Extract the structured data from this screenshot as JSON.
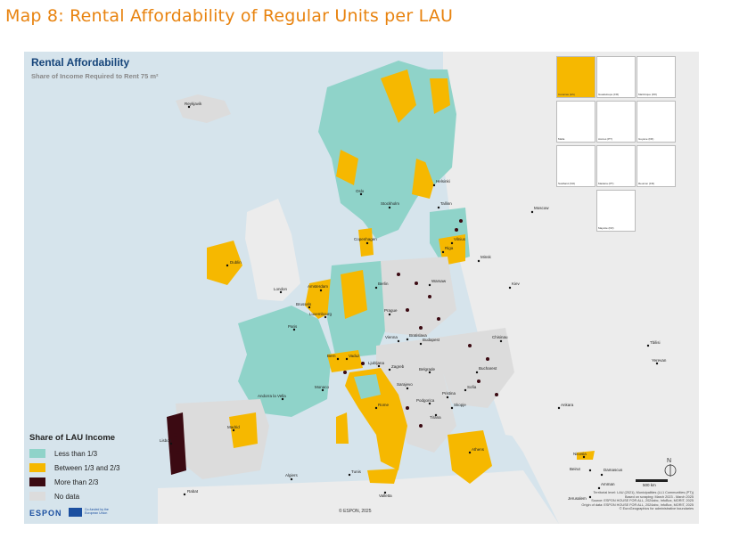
{
  "page_title": "Map 8: Rental Affordability of Regular Units per LAU",
  "map": {
    "title": "Rental Affordability",
    "subtitle": "Share of Income Required to Rent 75 m²"
  },
  "legend": {
    "title": "Share of LAU Income",
    "items": [
      {
        "label": "Less than 1/3",
        "color": "#8fd3c9"
      },
      {
        "label": "Between 1/3 and 2/3",
        "color": "#f6b800"
      },
      {
        "label": "More than 2/3",
        "color": "#3b0a12"
      },
      {
        "label": "No data",
        "color": "#dcdcdc"
      }
    ]
  },
  "colors": {
    "sea": "#d6e4ec",
    "land_no_data": "#dcdcdc",
    "non_eu_land": "#ececec"
  },
  "cities": [
    "Reykjavik",
    "Oslo",
    "Stockholm",
    "Helsinki",
    "Tallinn",
    "Riga",
    "Vilnius",
    "Minsk",
    "Moscow",
    "Copenhagen",
    "Dublin",
    "London",
    "Amsterdam",
    "Berlin",
    "Warsaw",
    "Kiev",
    "Brussels",
    "Luxembourg",
    "Paris",
    "Prague",
    "Bratislava",
    "Vienna",
    "Budapest",
    "Chisinau",
    "Bern",
    "Vaduz",
    "Ljubljana",
    "Zagreb",
    "Belgrade",
    "Bucharest",
    "Sarajevo",
    "Podgorica",
    "Pristina",
    "Skopje",
    "Sofia",
    "Tirana",
    "Rome",
    "Monaco",
    "Andorra la Vella",
    "Madrid",
    "Lisbon",
    "Valletta",
    "Algiers",
    "Tunis",
    "Rabat",
    "Athens",
    "Ankara",
    "Tbilisi",
    "Yerevan",
    "Nicosia",
    "Beirut",
    "Damascus",
    "Amman",
    "Jerusalem"
  ],
  "insets": [
    "Canarias (ES)",
    "Guadeloupe (FR)",
    "Martinique (FR)",
    "Malta",
    "Acores (PT)",
    "Guyane (FR)",
    "Svalbard (NO)",
    "Madeira (PT)",
    "Reunion (FR)",
    "Mayotte (FR)"
  ],
  "scale_label": "500 km",
  "north_label": "N",
  "logo": {
    "name": "ESPON",
    "eu_text": "Co-funded by the European Union"
  },
  "copyright": "© ESPON, 2025",
  "credits": [
    "Territorial level: LAU (2021), Municipalities (LL1 Communities (PT))",
    "Based on scraping: March 2023 - March 2025",
    "Source: ESPON HOUSE FOR ALL, 2024abc, InfoBox, MORIT, 2025",
    "Origin of data: ESPON HOUSE FOR ALL, 2024abc, InfoBox, MORIT, 2025",
    "© EuroGeographics for administrative boundaries"
  ]
}
